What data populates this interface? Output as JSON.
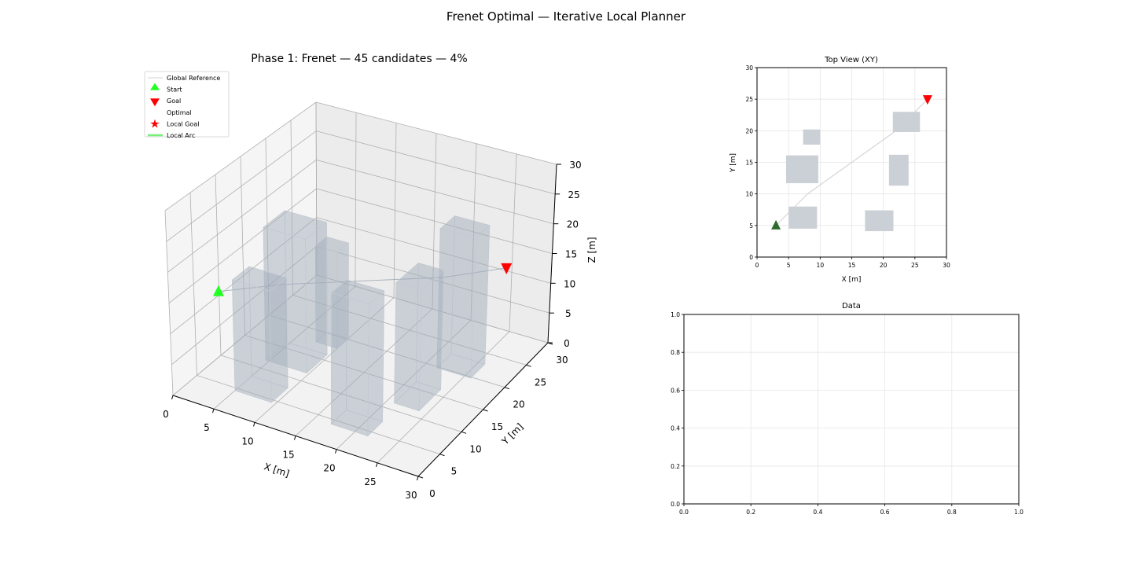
{
  "figure": {
    "suptitle": "Frenet Optimal — Iterative Local Planner"
  },
  "chart_data": [
    {
      "type": "scatter3d",
      "title": "Phase 1: Frenet — 45 candidates — 4%",
      "xlabel": "X [m]",
      "ylabel": "Y [m]",
      "zlabel": "Z [m]",
      "xlim": [
        0,
        30
      ],
      "ylim": [
        0,
        30
      ],
      "zlim": [
        0,
        30
      ],
      "xticks": [
        0,
        5,
        10,
        15,
        20,
        25,
        30
      ],
      "yticks": [
        0,
        5,
        10,
        15,
        20,
        25,
        30
      ],
      "zticks": [
        0,
        5,
        10,
        15,
        20,
        25,
        30
      ],
      "grid": true,
      "legend": {
        "placement": "upper-left",
        "entries": [
          {
            "label": "Global Reference",
            "marker": "line",
            "color": "#d3d3d3"
          },
          {
            "label": "Start",
            "marker": "triangle-up",
            "color": "#22ff22"
          },
          {
            "label": "Goal",
            "marker": "triangle-down",
            "color": "#ff0000"
          },
          {
            "label": "Optimal",
            "marker": "none",
            "color": "#0000ff"
          },
          {
            "label": "Local Goal",
            "marker": "star",
            "color": "#ff0000"
          },
          {
            "label": "Local Arc",
            "marker": "line",
            "color": "#77ee77"
          }
        ]
      },
      "global_reference": {
        "x": [
          3,
          8,
          22,
          27
        ],
        "y": [
          5,
          10,
          20,
          25
        ],
        "z": [
          15,
          15,
          15,
          15
        ]
      },
      "start": {
        "x": 3,
        "y": 5,
        "z": 15,
        "color": "#22ff22"
      },
      "goal": {
        "x": 27,
        "y": 25,
        "z": 15,
        "color": "#ff0000"
      },
      "obstacles": [
        {
          "x": [
            5,
            9.5
          ],
          "y": [
            4.5,
            8
          ],
          "z": [
            0,
            18
          ]
        },
        {
          "x": [
            4.6,
            9.7
          ],
          "y": [
            11.7,
            16.1
          ],
          "z": [
            0,
            22
          ]
        },
        {
          "x": [
            7.3,
            10
          ],
          "y": [
            17.8,
            20.2
          ],
          "z": [
            0,
            16
          ]
        },
        {
          "x": [
            17.1,
            21.6
          ],
          "y": [
            4.1,
            7.4
          ],
          "z": [
            0,
            21
          ]
        },
        {
          "x": [
            20.9,
            24
          ],
          "y": [
            11.3,
            16.2
          ],
          "z": [
            0,
            19.5
          ]
        },
        {
          "x": [
            21.5,
            25.8
          ],
          "y": [
            19.8,
            23
          ],
          "z": [
            0,
            23
          ]
        }
      ],
      "obstacle_color": "#a3adbb"
    },
    {
      "type": "scatter",
      "title": "Top View (XY)",
      "xlabel": "X [m]",
      "ylabel": "Y [m]",
      "xlim": [
        0,
        30
      ],
      "ylim": [
        0,
        30
      ],
      "xticks": [
        0,
        5,
        10,
        15,
        20,
        25,
        30
      ],
      "yticks": [
        0,
        5,
        10,
        15,
        20,
        25,
        30
      ],
      "grid": true,
      "global_reference": {
        "x": [
          3,
          8,
          22,
          27
        ],
        "y": [
          5,
          10,
          20,
          25
        ]
      },
      "start": {
        "x": 3,
        "y": 5,
        "color": "#2e6b2e"
      },
      "goal": {
        "x": 27,
        "y": 25,
        "color": "#ff0000"
      },
      "obstacles": [
        {
          "x": [
            5,
            9.5
          ],
          "y": [
            4.5,
            8
          ]
        },
        {
          "x": [
            4.6,
            9.7
          ],
          "y": [
            11.7,
            16.1
          ]
        },
        {
          "x": [
            7.3,
            10
          ],
          "y": [
            17.8,
            20.2
          ]
        },
        {
          "x": [
            17.1,
            21.6
          ],
          "y": [
            4.1,
            7.4
          ]
        },
        {
          "x": [
            20.9,
            24
          ],
          "y": [
            11.3,
            16.2
          ]
        },
        {
          "x": [
            21.5,
            25.8
          ],
          "y": [
            19.8,
            23
          ]
        }
      ],
      "obstacle_color": "#cbd0d7"
    },
    {
      "type": "line",
      "title": "Data",
      "xlim": [
        0,
        1
      ],
      "ylim": [
        0,
        1
      ],
      "xticks": [
        "0.0",
        "0.2",
        "0.4",
        "0.6",
        "0.8",
        "1.0"
      ],
      "yticks": [
        "0.0",
        "0.2",
        "0.4",
        "0.6",
        "0.8",
        "1.0"
      ],
      "grid": true,
      "series": []
    }
  ]
}
